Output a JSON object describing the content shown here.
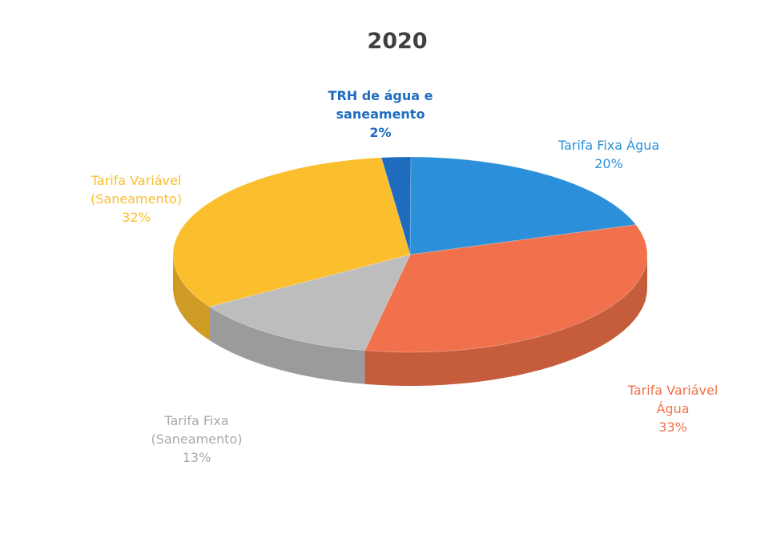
{
  "chart_data": {
    "type": "pie",
    "title": "2020",
    "categories": [
      "TRH de água e saneamento",
      "Tarifa Fixa Água",
      "Tarifa Variável Água",
      "Tarifa Fixa (Saneamento)",
      "Tarifa Variável (Saneamento)"
    ],
    "values": [
      2,
      20,
      33,
      13,
      32
    ],
    "value_labels": [
      "2%",
      "20%",
      "33%",
      "13%",
      "32%"
    ],
    "colors": [
      "#1f6cbf",
      "#2b90d9",
      "#f0714b",
      "#bdbdbd",
      "#fbbe2c"
    ]
  }
}
